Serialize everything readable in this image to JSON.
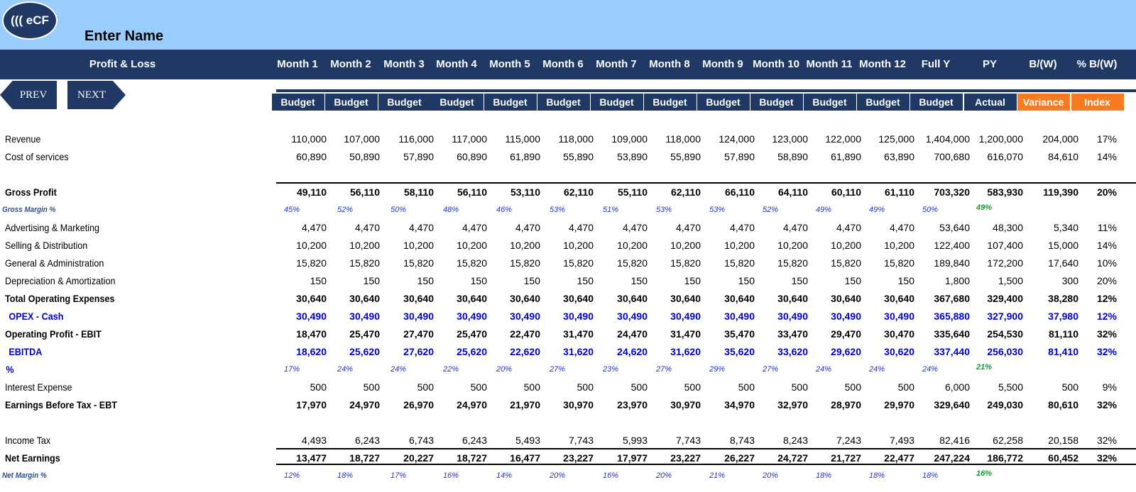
{
  "app": {
    "logo_text": "((( eCF",
    "name": "Enter Name"
  },
  "header": {
    "title": "Profit & Loss",
    "columns": [
      "Month 1",
      "Month 2",
      "Month 3",
      "Month 4",
      "Month 5",
      "Month 6",
      "Month 7",
      "Month 8",
      "Month 9",
      "Month 10",
      "Month 11",
      "Month 12",
      "Full Y",
      "PY",
      "B/(W)",
      "% B/(W)"
    ],
    "subs": [
      "Budget",
      "Budget",
      "Budget",
      "Budget",
      "Budget",
      "Budget",
      "Budget",
      "Budget",
      "Budget",
      "Budget",
      "Budget",
      "Budget",
      "Budget",
      "Actual",
      "Variance",
      "Index"
    ]
  },
  "nav": {
    "prev": "PREV",
    "next": "NEXT"
  },
  "colors": {
    "navy": "#1f3864",
    "sky": "#99ccff",
    "orange": "#f97a1f",
    "blue_text": "#0000cc",
    "green_text": "#1a9a3a"
  },
  "rows": [
    {
      "label": "Revenue",
      "style": "normal",
      "values": [
        "110,000",
        "107,000",
        "116,000",
        "117,000",
        "115,000",
        "118,000",
        "109,000",
        "118,000",
        "124,000",
        "123,000",
        "122,000",
        "125,000",
        "1,404,000",
        "1,200,000",
        "204,000",
        "17%"
      ]
    },
    {
      "label": "Cost of services",
      "style": "normal",
      "values": [
        "60,890",
        "50,890",
        "57,890",
        "60,890",
        "61,890",
        "55,890",
        "53,890",
        "55,890",
        "57,890",
        "58,890",
        "61,890",
        "63,890",
        "700,680",
        "616,070",
        "84,610",
        "14%"
      ]
    },
    {
      "label": "Gross Profit",
      "style": "bold",
      "values": [
        "49,110",
        "56,110",
        "58,110",
        "56,110",
        "53,110",
        "62,110",
        "55,110",
        "62,110",
        "66,110",
        "64,110",
        "60,110",
        "61,110",
        "703,320",
        "583,930",
        "119,390",
        "20%"
      ]
    },
    {
      "label": "Gross Margin %",
      "style": "pct",
      "values": [
        "45%",
        "52%",
        "50%",
        "48%",
        "46%",
        "53%",
        "51%",
        "53%",
        "53%",
        "52%",
        "49%",
        "49%",
        "50%",
        "49%",
        "",
        ""
      ]
    },
    {
      "label": "Advertising & Marketing",
      "style": "normal",
      "values": [
        "4,470",
        "4,470",
        "4,470",
        "4,470",
        "4,470",
        "4,470",
        "4,470",
        "4,470",
        "4,470",
        "4,470",
        "4,470",
        "4,470",
        "53,640",
        "48,300",
        "5,340",
        "11%"
      ]
    },
    {
      "label": "Selling & Distribution",
      "style": "normal",
      "values": [
        "10,200",
        "10,200",
        "10,200",
        "10,200",
        "10,200",
        "10,200",
        "10,200",
        "10,200",
        "10,200",
        "10,200",
        "10,200",
        "10,200",
        "122,400",
        "107,400",
        "15,000",
        "14%"
      ]
    },
    {
      "label": "General & Administration",
      "style": "normal",
      "values": [
        "15,820",
        "15,820",
        "15,820",
        "15,820",
        "15,820",
        "15,820",
        "15,820",
        "15,820",
        "15,820",
        "15,820",
        "15,820",
        "15,820",
        "189,840",
        "172,200",
        "17,640",
        "10%"
      ]
    },
    {
      "label": "Depreciation & Amortization",
      "style": "normal",
      "values": [
        "150",
        "150",
        "150",
        "150",
        "150",
        "150",
        "150",
        "150",
        "150",
        "150",
        "150",
        "150",
        "1,800",
        "1,500",
        "300",
        "20%"
      ]
    },
    {
      "label": "Total Operating Expenses",
      "style": "bold",
      "values": [
        "30,640",
        "30,640",
        "30,640",
        "30,640",
        "30,640",
        "30,640",
        "30,640",
        "30,640",
        "30,640",
        "30,640",
        "30,640",
        "30,640",
        "367,680",
        "329,400",
        "38,280",
        "12%"
      ]
    },
    {
      "label": "OPEX - Cash",
      "style": "blue",
      "values": [
        "30,490",
        "30,490",
        "30,490",
        "30,490",
        "30,490",
        "30,490",
        "30,490",
        "30,490",
        "30,490",
        "30,490",
        "30,490",
        "30,490",
        "365,880",
        "327,900",
        "37,980",
        "12%"
      ]
    },
    {
      "label": "Operating Profit - EBIT",
      "style": "bold",
      "values": [
        "18,470",
        "25,470",
        "27,470",
        "25,470",
        "22,470",
        "31,470",
        "24,470",
        "31,470",
        "35,470",
        "33,470",
        "29,470",
        "30,470",
        "335,640",
        "254,530",
        "81,110",
        "32%"
      ]
    },
    {
      "label": "EBITDA",
      "style": "blue",
      "values": [
        "18,620",
        "25,620",
        "27,620",
        "25,620",
        "22,620",
        "31,620",
        "24,620",
        "31,620",
        "35,620",
        "33,620",
        "29,620",
        "30,620",
        "337,440",
        "256,030",
        "81,410",
        "32%"
      ]
    },
    {
      "label": "%",
      "style": "bluepct",
      "values": [
        "17%",
        "24%",
        "24%",
        "22%",
        "20%",
        "27%",
        "23%",
        "27%",
        "29%",
        "27%",
        "24%",
        "24%",
        "24%",
        "21%",
        "",
        ""
      ]
    },
    {
      "label": "Interest Expense",
      "style": "normal",
      "values": [
        "500",
        "500",
        "500",
        "500",
        "500",
        "500",
        "500",
        "500",
        "500",
        "500",
        "500",
        "500",
        "6,000",
        "5,500",
        "500",
        "9%"
      ]
    },
    {
      "label": "Earnings Before Tax - EBT",
      "style": "bold",
      "values": [
        "17,970",
        "24,970",
        "26,970",
        "24,970",
        "21,970",
        "30,970",
        "23,970",
        "30,970",
        "34,970",
        "32,970",
        "28,970",
        "29,970",
        "329,640",
        "249,030",
        "80,610",
        "32%"
      ]
    },
    {
      "label": "Income Tax",
      "style": "normal",
      "values": [
        "4,493",
        "6,243",
        "6,743",
        "6,243",
        "5,493",
        "7,743",
        "5,993",
        "7,743",
        "8,743",
        "8,243",
        "7,243",
        "7,493",
        "82,416",
        "62,258",
        "20,158",
        "32%"
      ]
    },
    {
      "label": "Net Earnings",
      "style": "bold",
      "values": [
        "13,477",
        "18,727",
        "20,227",
        "18,727",
        "16,477",
        "23,227",
        "17,977",
        "23,227",
        "26,227",
        "24,727",
        "21,727",
        "22,477",
        "247,224",
        "186,772",
        "60,452",
        "32%"
      ]
    },
    {
      "label": "Net Margin %",
      "style": "pct",
      "values": [
        "12%",
        "18%",
        "17%",
        "16%",
        "14%",
        "20%",
        "16%",
        "20%",
        "21%",
        "20%",
        "18%",
        "18%",
        "18%",
        "16%",
        "",
        ""
      ]
    }
  ]
}
